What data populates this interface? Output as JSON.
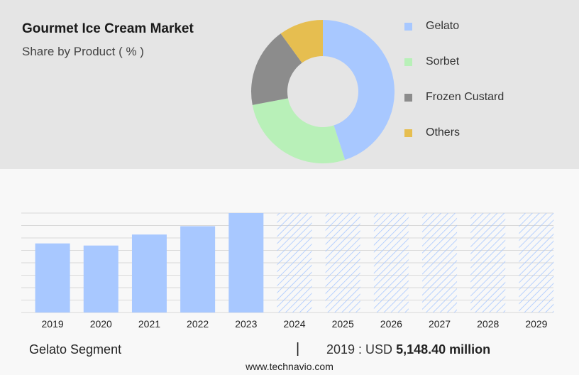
{
  "header": {
    "title": "Gourmet Ice Cream Market",
    "subtitle": "Share by Product ( % )"
  },
  "footer": {
    "segment_label": "Gelato Segment",
    "separator": "|",
    "year_label": "2019 : USD",
    "value_label": "5,148.40 million",
    "source": "www.technavio.com"
  },
  "colors": {
    "gelato": "#a8c8ff",
    "sorbet": "#b8f0b8",
    "frozen_custard": "#8c8c8c",
    "others": "#e6be50",
    "forecast_hatch": "#a8c8ff"
  },
  "chart_data": [
    {
      "type": "pie",
      "variant": "donut",
      "title": "Gourmet Ice Cream Market",
      "subtitle": "Share by Product ( % )",
      "legend_position": "right",
      "categories": [
        "Gelato",
        "Sorbet",
        "Frozen Custard",
        "Others"
      ],
      "values": [
        45,
        27,
        18,
        10
      ],
      "colors": [
        "#a8c8ff",
        "#b8f0b8",
        "#8c8c8c",
        "#e6be50"
      ]
    },
    {
      "type": "bar",
      "title": "Gelato Segment",
      "categories": [
        "2019",
        "2020",
        "2021",
        "2022",
        "2023",
        "2024",
        "2025",
        "2026",
        "2027",
        "2028",
        "2029"
      ],
      "values": [
        5148.4,
        4990,
        5810,
        6430,
        7410,
        null,
        null,
        null,
        null,
        null,
        null
      ],
      "forecast": [
        false,
        false,
        false,
        false,
        false,
        true,
        true,
        true,
        true,
        true,
        true
      ],
      "forecast_style": "hatched",
      "unit": "USD million",
      "ylim": [
        0,
        7410
      ],
      "grid": true,
      "color": "#a8c8ff"
    }
  ]
}
